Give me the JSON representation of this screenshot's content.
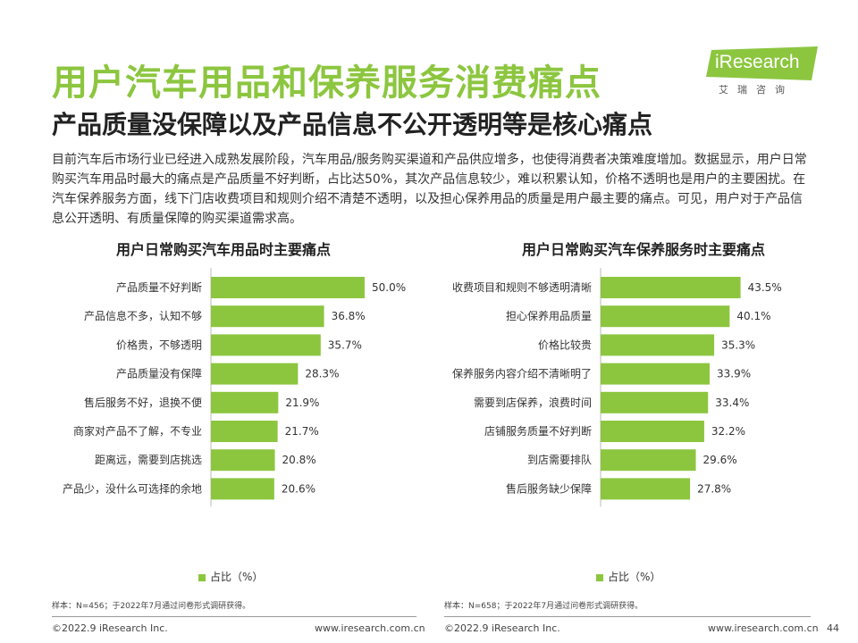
{
  "title": "用户汽车用品和保养服务消费痛点",
  "subtitle": "产品质量没保障以及产品信息不公开透明等是核心痛点",
  "intro": "目前汽车后市场行业已经进入成熟发展阶段，汽车用品/服务购买渠道和产品供应增多，也使得消费者决策难度增加。数据显示，用户日常购买汽车用品时最大的痛点是产品质量不好判断，占比达50%，其次产品信息较少，难以积累认知，价格不透明也是用户的主要困扰。在汽车保养服务方面，线下门店收费项目和规则介绍不清楚不透明，以及担心保养用品的质量是用户最主要的痛点。可见，用户对于产品信息公开透明、有质量保障的购买渠道需求高。",
  "logo": {
    "brand": "iResearch",
    "sub": "艾瑞咨询"
  },
  "page_number": "44",
  "colors": {
    "accent": "#8cc63f",
    "text": "#333333"
  },
  "chart_data": [
    {
      "type": "bar",
      "orientation": "horizontal",
      "title": "用户日常购买汽车用品时主要痛点",
      "categories": [
        "产品质量不好判断",
        "产品信息不多，认知不够",
        "价格贵，不够透明",
        "产品质量没有保障",
        "售后服务不好，退换不便",
        "商家对产品不了解，不专业",
        "距离远，需要到店挑选",
        "产品少，没什么可选择的余地"
      ],
      "values": [
        50.0,
        36.8,
        35.7,
        28.3,
        21.9,
        21.7,
        20.8,
        20.6
      ],
      "value_labels": [
        "50.0%",
        "36.8%",
        "35.7%",
        "28.3%",
        "21.9%",
        "21.7%",
        "20.8%",
        "20.6%"
      ],
      "legend": "占比（%）",
      "color": "#8cc63f",
      "note": "样本：N=456；于2022年7月通过问卷形式调研获得。",
      "footer_left": "©2022.9 iResearch Inc.",
      "footer_right": "www.iresearch.com.cn"
    },
    {
      "type": "bar",
      "orientation": "horizontal",
      "title": "用户日常购买汽车保养服务时主要痛点",
      "categories": [
        "收费项目和规则不够透明清晰",
        "担心保养用品质量",
        "价格比较贵",
        "保养服务内容介绍不清晰明了",
        "需要到店保养，浪费时间",
        "店铺服务质量不好判断",
        "到店需要排队",
        "售后服务缺少保障"
      ],
      "values": [
        43.5,
        40.1,
        35.3,
        33.9,
        33.4,
        32.2,
        29.6,
        27.8
      ],
      "value_labels": [
        "43.5%",
        "40.1%",
        "35.3%",
        "33.9%",
        "33.4%",
        "32.2%",
        "29.6%",
        "27.8%"
      ],
      "legend": "占比（%）",
      "color": "#8cc63f",
      "note": "样本：N=658；于2022年7月通过问卷形式调研获得。",
      "footer_left": "©2022.9 iResearch Inc.",
      "footer_right": "www.iresearch.com.cn"
    }
  ]
}
